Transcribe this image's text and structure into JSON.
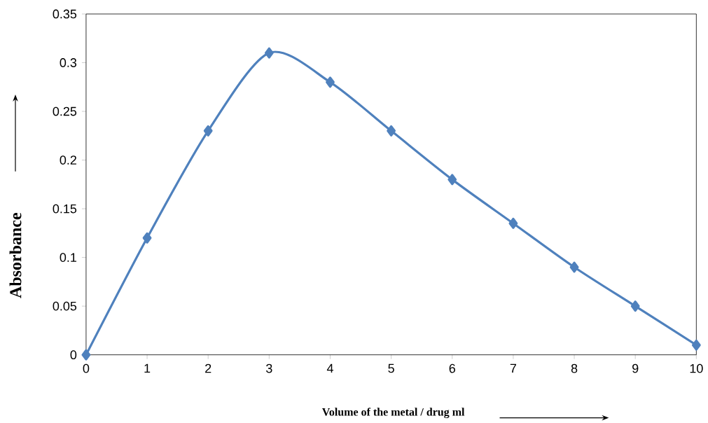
{
  "chart_data": {
    "type": "line",
    "xlabel": "Volume of the metal / drug ml",
    "ylabel": "Absorbance",
    "x": [
      0,
      1,
      2,
      3,
      4,
      5,
      6,
      7,
      8,
      9,
      10
    ],
    "series": [
      {
        "color": "#4f81bd",
        "values": [
          0,
          0.12,
          0.23,
          0.31,
          0.28,
          0.23,
          0.18,
          0.135,
          0.09,
          0.05,
          0.01
        ]
      }
    ],
    "xlim": [
      0,
      10
    ],
    "xticks": [
      0,
      1,
      2,
      3,
      4,
      5,
      6,
      7,
      8,
      9,
      10
    ],
    "ylim": [
      0,
      0.35
    ],
    "yticks": [
      0,
      0.05,
      0.1,
      0.15,
      0.2,
      0.25,
      0.3,
      0.35
    ],
    "grid": false,
    "marker": "diamond",
    "line_style": "solid"
  }
}
